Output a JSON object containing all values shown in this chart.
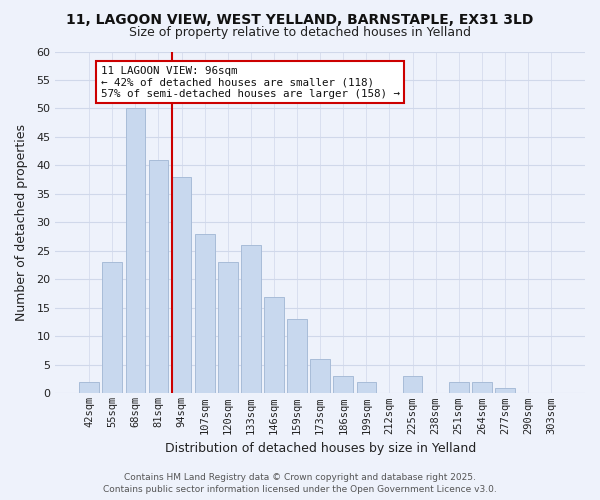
{
  "title_line1": "11, LAGOON VIEW, WEST YELLAND, BARNSTAPLE, EX31 3LD",
  "title_line2": "Size of property relative to detached houses in Yelland",
  "xlabel": "Distribution of detached houses by size in Yelland",
  "ylabel": "Number of detached properties",
  "bar_labels": [
    "42sqm",
    "55sqm",
    "68sqm",
    "81sqm",
    "94sqm",
    "107sqm",
    "120sqm",
    "133sqm",
    "146sqm",
    "159sqm",
    "173sqm",
    "186sqm",
    "199sqm",
    "212sqm",
    "225sqm",
    "238sqm",
    "251sqm",
    "264sqm",
    "277sqm",
    "290sqm",
    "303sqm"
  ],
  "bar_heights": [
    2,
    23,
    50,
    41,
    38,
    28,
    23,
    26,
    17,
    13,
    6,
    3,
    2,
    0,
    3,
    0,
    2,
    2,
    1,
    0,
    0
  ],
  "bar_color": "#c8d8ee",
  "bar_edge_color": "#a8bcd8",
  "vline_color": "#cc0000",
  "ylim": [
    0,
    60
  ],
  "yticks": [
    0,
    5,
    10,
    15,
    20,
    25,
    30,
    35,
    40,
    45,
    50,
    55,
    60
  ],
  "annotation_title": "11 LAGOON VIEW: 96sqm",
  "annotation_line1": "← 42% of detached houses are smaller (118)",
  "annotation_line2": "57% of semi-detached houses are larger (158) →",
  "grid_color": "#d0d8ea",
  "background_color": "#eef2fb",
  "footer_line1": "Contains HM Land Registry data © Crown copyright and database right 2025.",
  "footer_line2": "Contains public sector information licensed under the Open Government Licence v3.0."
}
